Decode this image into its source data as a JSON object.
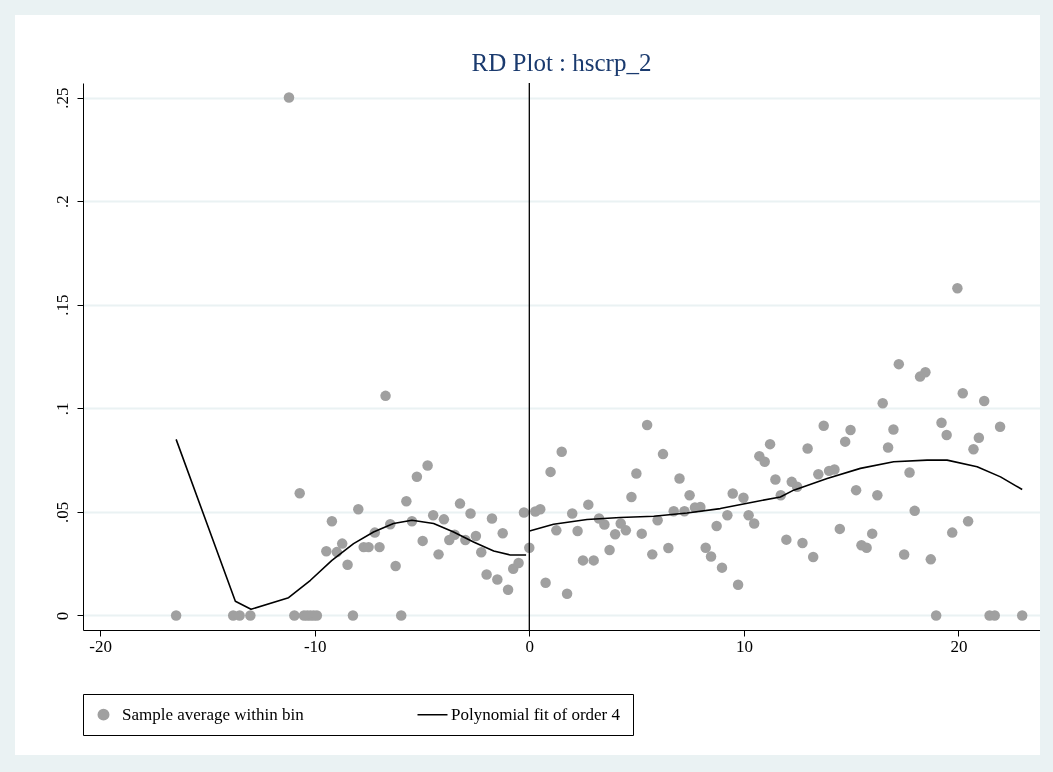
{
  "chart_data": {
    "type": "scatter",
    "title": "RD Plot : hscrp_2",
    "xlim": [
      -20.8,
      23.8
    ],
    "xticks": [
      -20,
      -10,
      0,
      10,
      20
    ],
    "ylim": [
      -0.007,
      0.257
    ],
    "yticks": [
      0,
      {
        "value": 0.05,
        "label": ".05"
      },
      {
        "value": 0.1,
        "label": ".1"
      },
      {
        "value": 0.15,
        "label": ".15"
      },
      {
        "value": 0.2,
        "label": ".2"
      },
      {
        "value": 0.25,
        "label": ".25"
      }
    ],
    "grid": "y",
    "legend": "bottom",
    "ref_lines": [
      {
        "axis": "x",
        "value": 0,
        "color": "#000000"
      }
    ],
    "series": [
      {
        "name": "Sample average within bin",
        "marker": "circle",
        "color": "#a0a0a0",
        "x": [
          -16.46,
          -13.8,
          -13.5,
          -13.0,
          -11.2,
          -10.95,
          -10.7,
          -10.5,
          -10.35,
          -10.2,
          -10.05,
          -9.9,
          -9.2,
          -9.46,
          -8.97,
          -8.72,
          -8.47,
          -8.22,
          -7.97,
          -7.72,
          -7.49,
          -7.2,
          -6.98,
          -6.7,
          -6.48,
          -6.23,
          -5.97,
          -5.73,
          -5.47,
          -5.24,
          -4.97,
          -4.74,
          -4.48,
          -4.23,
          -3.98,
          -3.73,
          -3.48,
          -3.23,
          -2.98,
          -2.74,
          -2.49,
          -2.24,
          -1.99,
          -1.74,
          -1.49,
          -1.24,
          -0.99,
          -0.75,
          -0.5,
          -0.25,
          0,
          0.28,
          0.51,
          0.76,
          0.99,
          1.26,
          1.51,
          1.76,
          2.0,
          2.25,
          2.5,
          2.75,
          3.0,
          3.25,
          3.5,
          3.74,
          4.0,
          4.26,
          4.5,
          4.76,
          4.99,
          5.24,
          5.49,
          5.73,
          5.98,
          6.23,
          6.48,
          6.73,
          7.0,
          7.23,
          7.47,
          7.72,
          7.97,
          8.22,
          8.47,
          8.73,
          8.98,
          9.23,
          9.48,
          9.73,
          9.98,
          10.22,
          10.48,
          10.72,
          10.97,
          11.22,
          11.47,
          11.72,
          11.98,
          12.23,
          12.48,
          12.73,
          12.97,
          13.23,
          13.47,
          13.72,
          13.97,
          14.22,
          14.47,
          14.72,
          14.97,
          15.23,
          15.48,
          15.72,
          15.98,
          16.22,
          16.47,
          16.72,
          16.97,
          17.22,
          17.47,
          17.72,
          17.96,
          18.21,
          18.46,
          18.71,
          18.96,
          19.21,
          19.45,
          19.71,
          19.95,
          20.2,
          20.45,
          20.7,
          20.95,
          21.2,
          21.45,
          21.69,
          21.94,
          22.97
        ],
        "values": [
          0,
          0,
          0,
          0,
          0.25,
          0,
          0.059,
          0,
          0,
          0,
          0,
          0,
          0.0455,
          0.031,
          0.0306,
          0.0347,
          0.0245,
          0,
          0.0513,
          0.033,
          0.033,
          0.04,
          0.033,
          0.106,
          0.044,
          0.0239,
          0,
          0.0551,
          0.0455,
          0.067,
          0.036,
          0.0724,
          0.0484,
          0.0295,
          0.0464,
          0.0364,
          0.039,
          0.054,
          0.0364,
          0.0492,
          0.0384,
          0.0305,
          0.0198,
          0.0468,
          0.0174,
          0.0397,
          0.0124,
          0.0226,
          0.0253,
          0.0497,
          0.0327,
          0.0502,
          0.0513,
          0.0158,
          0.0693,
          0.0411,
          0.079,
          0.0105,
          0.0492,
          0.0408,
          0.0266,
          0.0535,
          0.0266,
          0.0468,
          0.0439,
          0.0316,
          0.0392,
          0.0444,
          0.0411,
          0.0572,
          0.0685,
          0.0395,
          0.0919,
          0.0295,
          0.046,
          0.0779,
          0.0326,
          0.0503,
          0.0661,
          0.0503,
          0.058,
          0.0521,
          0.0524,
          0.0327,
          0.0285,
          0.0432,
          0.0231,
          0.0484,
          0.0589,
          0.0148,
          0.0568,
          0.0484,
          0.0444,
          0.0769,
          0.0742,
          0.0827,
          0.0656,
          0.058,
          0.0366,
          0.0645,
          0.0621,
          0.035,
          0.0806,
          0.0282,
          0.0682,
          0.0916,
          0.0698,
          0.0705,
          0.0418,
          0.0839,
          0.0895,
          0.0605,
          0.0339,
          0.0327,
          0.0395,
          0.058,
          0.1024,
          0.0811,
          0.0898,
          0.1213,
          0.0294,
          0.069,
          0.0505,
          0.1153,
          0.1174,
          0.0271,
          0,
          0.093,
          0.0871,
          0.04,
          0.1579,
          0.1073,
          0.0455,
          0.0802,
          0.0858,
          0.1035,
          0,
          0,
          0.0911,
          0
        ]
      },
      {
        "name": "Polynomial fit of order 4",
        "type": "line",
        "color": "#000000",
        "x": [
          -16.46,
          -13.7,
          -12.97,
          -11.22,
          -10.2,
          -9.2,
          -8.19,
          -7.26,
          -6.33,
          -5.47,
          -4.46,
          -3.53,
          -2.6,
          -1.66,
          -0.89,
          -0.15,
          -0.07,
          0.01,
          1.13,
          2.69,
          4.24,
          5.8,
          7.35,
          8.9,
          10.46,
          11.7,
          12.32,
          13.88,
          15.43,
          16.98,
          18.54,
          19.47,
          20.87,
          21.96,
          22.97
        ],
        "values": [
          0.085,
          0.0069,
          0.003,
          0.0086,
          0.017,
          0.0266,
          0.0347,
          0.0403,
          0.0444,
          0.046,
          0.0444,
          0.0403,
          0.0355,
          0.0311,
          0.0292,
          0.0292,
          null,
          0.0408,
          0.044,
          0.0463,
          0.0473,
          0.0479,
          0.0495,
          0.0516,
          0.0548,
          0.0572,
          0.0605,
          0.0661,
          0.071,
          0.0742,
          0.075,
          0.075,
          0.0718,
          0.0669,
          0.0608
        ]
      }
    ]
  }
}
